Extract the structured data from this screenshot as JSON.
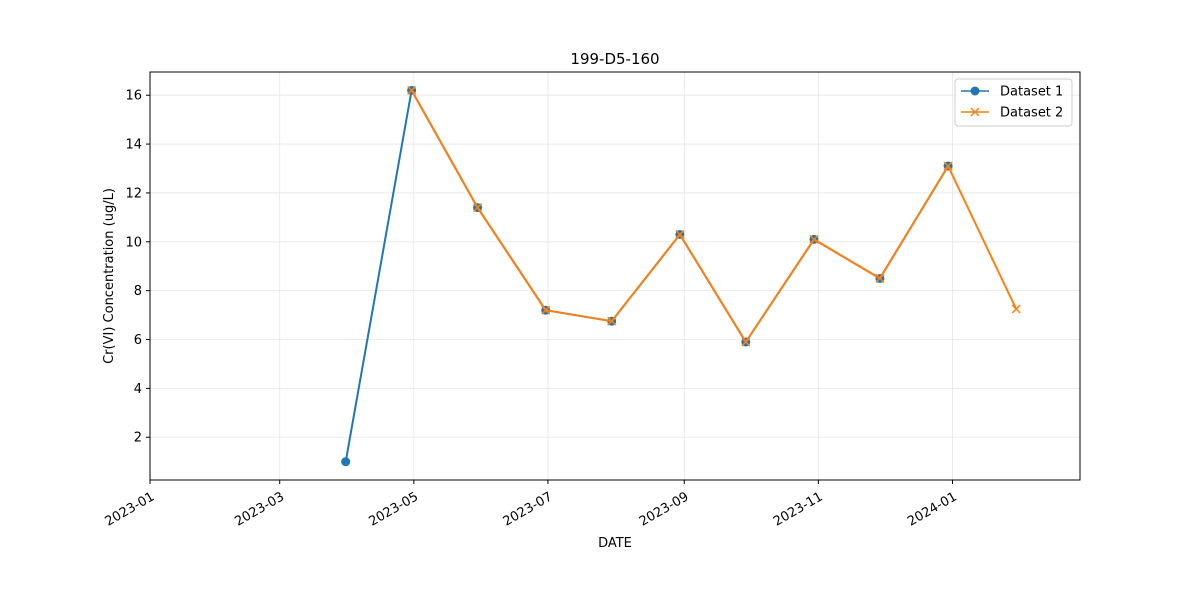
{
  "chart_data": {
    "type": "line",
    "title": "199-D5-160",
    "xlabel": "DATE",
    "ylabel": "Cr(VI) Concentration (ug/L)",
    "x_range": [
      "2023-01-01",
      "2024-02-28"
    ],
    "ylim": [
      0.25,
      16.95
    ],
    "x_ticks": [
      "2023-01",
      "2023-03",
      "2023-05",
      "2023-07",
      "2023-09",
      "2023-11",
      "2024-01"
    ],
    "y_ticks": [
      2,
      4,
      6,
      8,
      10,
      12,
      14,
      16
    ],
    "grid": true,
    "legend_position": "top-right",
    "series": [
      {
        "name": "Dataset 1",
        "color": "#1f77b4",
        "marker": "circle",
        "points": [
          {
            "x": "2023-03-31",
            "y": 1.0
          },
          {
            "x": "2023-04-30",
            "y": 16.2
          },
          {
            "x": "2023-05-30",
            "y": 11.4
          },
          {
            "x": "2023-06-30",
            "y": 7.2
          },
          {
            "x": "2023-07-30",
            "y": 6.75
          },
          {
            "x": "2023-08-30",
            "y": 10.3
          },
          {
            "x": "2023-09-29",
            "y": 5.9
          },
          {
            "x": "2023-10-30",
            "y": 10.1
          },
          {
            "x": "2023-11-29",
            "y": 8.5
          },
          {
            "x": "2023-12-30",
            "y": 13.1
          }
        ]
      },
      {
        "name": "Dataset 2",
        "color": "#ff7f0e",
        "marker": "x",
        "points": [
          {
            "x": "2023-04-30",
            "y": 16.2
          },
          {
            "x": "2023-05-30",
            "y": 11.4
          },
          {
            "x": "2023-06-30",
            "y": 7.2
          },
          {
            "x": "2023-07-30",
            "y": 6.75
          },
          {
            "x": "2023-08-30",
            "y": 10.3
          },
          {
            "x": "2023-09-29",
            "y": 5.9
          },
          {
            "x": "2023-10-30",
            "y": 10.1
          },
          {
            "x": "2023-11-29",
            "y": 8.5
          },
          {
            "x": "2023-12-30",
            "y": 13.1
          },
          {
            "x": "2024-01-30",
            "y": 7.25
          }
        ]
      }
    ]
  }
}
